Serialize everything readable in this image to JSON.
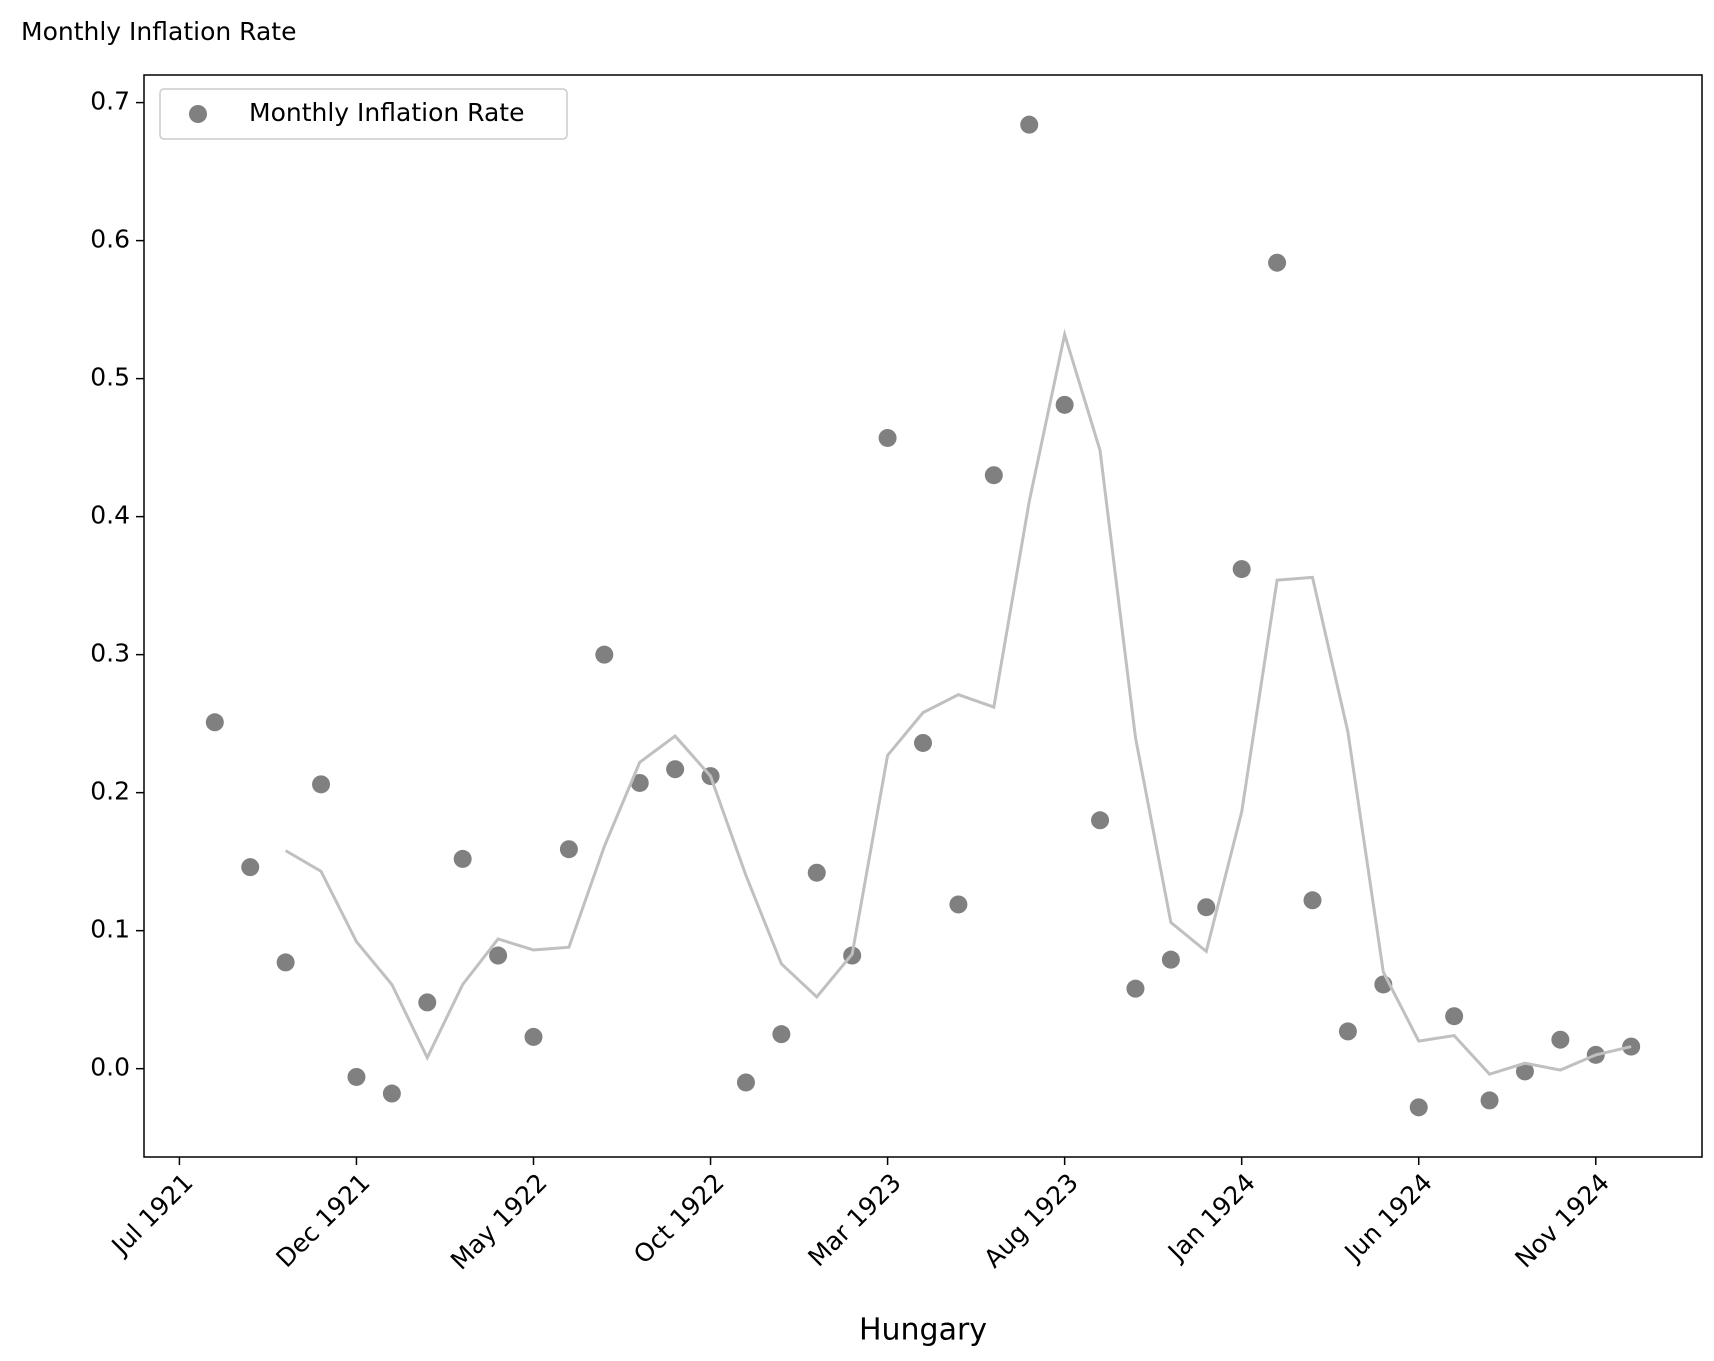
{
  "chart_data": {
    "type": "scatter",
    "title": "Monthly Inflation Rate",
    "x_label": "Hungary",
    "x": [
      "1921-08",
      "1921-09",
      "1921-10",
      "1921-11",
      "1921-12",
      "1922-01",
      "1922-02",
      "1922-03",
      "1922-04",
      "1922-05",
      "1922-06",
      "1922-07",
      "1922-08",
      "1922-09",
      "1922-10",
      "1922-11",
      "1922-12",
      "1923-01",
      "1923-02",
      "1923-03",
      "1923-04",
      "1923-05",
      "1923-06",
      "1923-07",
      "1923-08",
      "1923-09",
      "1923-10",
      "1923-11",
      "1923-12",
      "1924-01",
      "1924-02",
      "1924-03",
      "1924-04",
      "1924-05",
      "1924-06",
      "1924-07",
      "1924-08",
      "1924-09",
      "1924-10",
      "1924-11",
      "1924-12"
    ],
    "series": [
      {
        "name": "Monthly Inflation Rate",
        "type": "scatter",
        "color": "#808080",
        "values": [
          0.251,
          0.146,
          0.077,
          0.206,
          -0.006,
          -0.018,
          0.048,
          0.152,
          0.082,
          0.023,
          0.159,
          0.3,
          0.207,
          0.217,
          0.212,
          -0.01,
          0.025,
          0.142,
          0.082,
          0.457,
          0.236,
          0.119,
          0.43,
          0.684,
          0.481,
          0.18,
          0.058,
          0.079,
          0.117,
          0.362,
          0.584,
          0.122,
          0.027,
          0.061,
          -0.028,
          0.038,
          -0.023,
          -0.002,
          0.021,
          0.01,
          0.016
        ]
      },
      {
        "type": "line",
        "color": "#c0c0c0",
        "values": [
          null,
          null,
          0.158,
          0.143,
          0.092,
          0.061,
          0.008,
          0.061,
          0.094,
          0.086,
          0.088,
          0.161,
          0.222,
          0.241,
          0.212,
          0.14,
          0.076,
          0.052,
          0.083,
          0.227,
          0.258,
          0.271,
          0.262,
          0.411,
          0.532,
          0.448,
          0.24,
          0.106,
          0.085,
          0.186,
          0.354,
          0.356,
          0.244,
          0.07,
          0.02,
          0.024,
          -0.004,
          0.004,
          -0.001,
          0.01,
          0.016
        ]
      }
    ],
    "xlim": [
      "1921-06",
      "1925-02"
    ],
    "xticks": [
      {
        "value": "1921-07",
        "label": "Jul 1921"
      },
      {
        "value": "1921-12",
        "label": "Dec 1921"
      },
      {
        "value": "1922-05",
        "label": "May 1922"
      },
      {
        "value": "1922-10",
        "label": "Oct 1922"
      },
      {
        "value": "1923-03",
        "label": "Mar 1923"
      },
      {
        "value": "1923-08",
        "label": "Aug 1923"
      },
      {
        "value": "1924-01",
        "label": "Jan 1924"
      },
      {
        "value": "1924-06",
        "label": "Jun 1924"
      },
      {
        "value": "1924-11",
        "label": "Nov 1924"
      }
    ],
    "ylim": [
      -0.064,
      0.72
    ],
    "yticks": [
      {
        "value": 0,
        "label": "0.0"
      },
      0.1,
      0.2,
      0.3,
      0.4,
      0.5,
      0.6,
      0.7
    ],
    "legend": "upper left",
    "grid": false
  }
}
